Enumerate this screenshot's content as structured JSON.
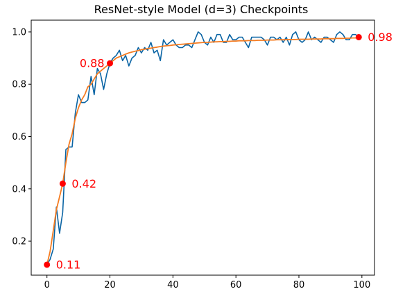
{
  "chart_data": {
    "type": "line",
    "title": "ResNet-style Model (d=3) Checkpoints",
    "xlabel": "",
    "ylabel": "",
    "xlim": [
      -5,
      104
    ],
    "ylim": [
      0.07,
      1.045
    ],
    "xticks": [
      0,
      20,
      40,
      60,
      80,
      100
    ],
    "yticks": [
      0.2,
      0.4,
      0.6,
      0.8,
      1.0
    ],
    "xtick_labels": [
      "0",
      "20",
      "40",
      "60",
      "80",
      "100"
    ],
    "ytick_labels": [
      "0.2",
      "0.4",
      "0.6",
      "0.8",
      "1.0"
    ],
    "grid": false,
    "legend": null,
    "colors": {
      "raw": "#0a64a4",
      "smooth": "#f57c21",
      "checkpoint": "#ff0000",
      "annotation": "#ff0000"
    },
    "series": [
      {
        "role": "raw",
        "x": [
          0,
          1,
          2,
          3,
          4,
          5,
          6,
          7,
          8,
          9,
          10,
          11,
          12,
          13,
          14,
          15,
          16,
          17,
          18,
          19,
          20,
          21,
          22,
          23,
          24,
          25,
          26,
          27,
          28,
          29,
          30,
          31,
          32,
          33,
          34,
          35,
          36,
          37,
          38,
          39,
          40,
          41,
          42,
          43,
          44,
          45,
          46,
          47,
          48,
          49,
          50,
          51,
          52,
          53,
          54,
          55,
          56,
          57,
          58,
          59,
          60,
          61,
          62,
          63,
          64,
          65,
          66,
          67,
          68,
          69,
          70,
          71,
          72,
          73,
          74,
          75,
          76,
          77,
          78,
          79,
          80,
          81,
          82,
          83,
          84,
          85,
          86,
          87,
          88,
          89,
          90,
          91,
          92,
          93,
          94,
          95,
          96,
          97,
          98,
          99
        ],
        "y": [
          0.11,
          0.13,
          0.17,
          0.33,
          0.23,
          0.31,
          0.55,
          0.56,
          0.56,
          0.69,
          0.76,
          0.73,
          0.73,
          0.74,
          0.83,
          0.76,
          0.86,
          0.84,
          0.78,
          0.84,
          0.88,
          0.9,
          0.91,
          0.93,
          0.89,
          0.91,
          0.87,
          0.9,
          0.91,
          0.94,
          0.92,
          0.94,
          0.93,
          0.96,
          0.92,
          0.93,
          0.89,
          0.97,
          0.95,
          0.96,
          0.97,
          0.95,
          0.94,
          0.94,
          0.95,
          0.95,
          0.94,
          0.97,
          1.0,
          0.99,
          0.96,
          0.95,
          0.98,
          0.96,
          0.99,
          0.99,
          0.96,
          0.96,
          0.99,
          0.97,
          0.97,
          0.98,
          0.98,
          0.96,
          0.94,
          0.98,
          0.98,
          0.98,
          0.98,
          0.97,
          0.95,
          0.98,
          0.98,
          0.97,
          0.98,
          0.96,
          0.98,
          0.95,
          0.99,
          1.0,
          0.97,
          0.96,
          0.97,
          1.0,
          0.97,
          0.98,
          0.97,
          0.96,
          0.98,
          0.98,
          0.97,
          0.96,
          0.99,
          1.0,
          0.99,
          0.97,
          0.97,
          0.99,
          0.99,
          0.98
        ]
      },
      {
        "role": "smooth",
        "x": [
          0,
          1,
          2,
          3,
          4,
          5,
          6,
          7,
          8,
          9,
          10,
          11,
          12,
          13,
          14,
          15,
          16,
          17,
          18,
          19,
          20,
          21,
          22,
          23,
          24,
          25,
          26,
          27,
          28,
          29,
          30,
          31,
          32,
          33,
          34,
          35,
          36,
          37,
          38,
          39,
          40,
          41,
          42,
          43,
          44,
          45,
          46,
          47,
          48,
          49,
          50,
          51,
          52,
          53,
          54,
          55,
          56,
          57,
          58,
          59,
          60,
          61,
          62,
          63,
          64,
          65,
          66,
          67,
          68,
          69,
          70,
          71,
          72,
          73,
          74,
          75,
          76,
          77,
          78,
          79,
          80,
          81,
          82,
          83,
          84,
          85,
          86,
          87,
          88,
          89,
          90,
          91,
          92,
          93,
          94,
          95,
          96,
          97,
          98,
          99
        ],
        "y": [
          0.11,
          0.16,
          0.24,
          0.32,
          0.37,
          0.42,
          0.5,
          0.57,
          0.61,
          0.67,
          0.71,
          0.74,
          0.76,
          0.79,
          0.8,
          0.82,
          0.84,
          0.85,
          0.86,
          0.87,
          0.88,
          0.89,
          0.9,
          0.905,
          0.91,
          0.915,
          0.92,
          0.923,
          0.926,
          0.929,
          0.932,
          0.934,
          0.936,
          0.938,
          0.94,
          0.942,
          0.944,
          0.946,
          0.947,
          0.948,
          0.95,
          0.951,
          0.952,
          0.953,
          0.954,
          0.955,
          0.956,
          0.957,
          0.958,
          0.959,
          0.96,
          0.96,
          0.961,
          0.962,
          0.962,
          0.963,
          0.963,
          0.964,
          0.964,
          0.965,
          0.965,
          0.966,
          0.966,
          0.966,
          0.967,
          0.967,
          0.967,
          0.968,
          0.968,
          0.968,
          0.969,
          0.969,
          0.969,
          0.97,
          0.97,
          0.97,
          0.97,
          0.971,
          0.971,
          0.971,
          0.972,
          0.972,
          0.972,
          0.972,
          0.973,
          0.973,
          0.973,
          0.973,
          0.974,
          0.974,
          0.974,
          0.974,
          0.975,
          0.975,
          0.975,
          0.976,
          0.976,
          0.977,
          0.977,
          0.98
        ]
      }
    ],
    "checkpoints": [
      {
        "x": 0,
        "y": 0.11,
        "label": "0.11"
      },
      {
        "x": 5,
        "y": 0.42,
        "label": "0.42"
      },
      {
        "x": 20,
        "y": 0.88,
        "label": "0.88"
      },
      {
        "x": 99,
        "y": 0.98,
        "label": "0.98"
      }
    ]
  }
}
